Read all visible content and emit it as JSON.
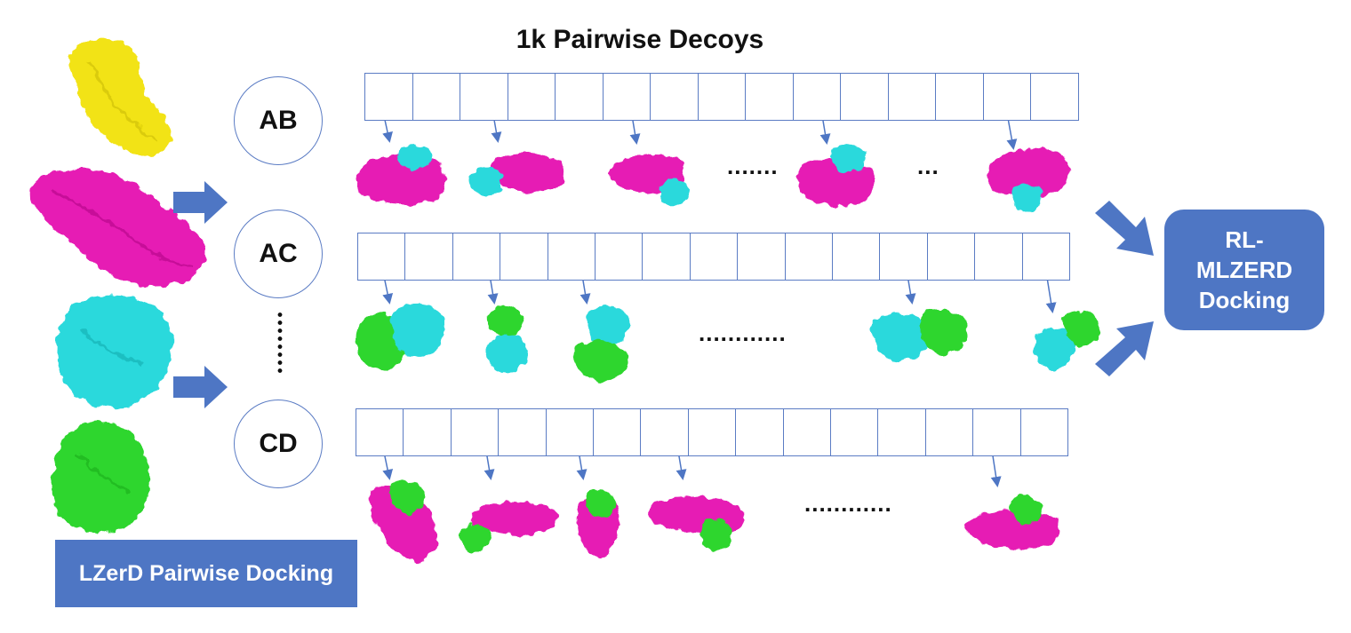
{
  "diagram": {
    "title": "1k Pairwise Decoys",
    "pairs": [
      {
        "label": "AB",
        "ellipsis": "......."
      },
      {
        "label": "AC",
        "ellipsis": "............"
      },
      {
        "label": "CD",
        "ellipsis": "............"
      }
    ],
    "ab_extra_ellipsis": "...",
    "final_box": {
      "line1": "RL-",
      "line2": "MLZERD",
      "line3": "Docking"
    },
    "left_box": "LZerD Pairwise Docking",
    "colors": {
      "accent_blue": "#4e76c4",
      "outline_blue": "#5b7cc4",
      "protein_a": "#e61eb4",
      "protein_b": "#2ad9dc",
      "protein_c": "#2fd62f",
      "protein_d": "#f2e312"
    },
    "icons": [
      "protein-yellow-icon",
      "protein-magenta-icon",
      "protein-cyan-icon",
      "protein-green-icon",
      "arrow-right-icon"
    ]
  }
}
